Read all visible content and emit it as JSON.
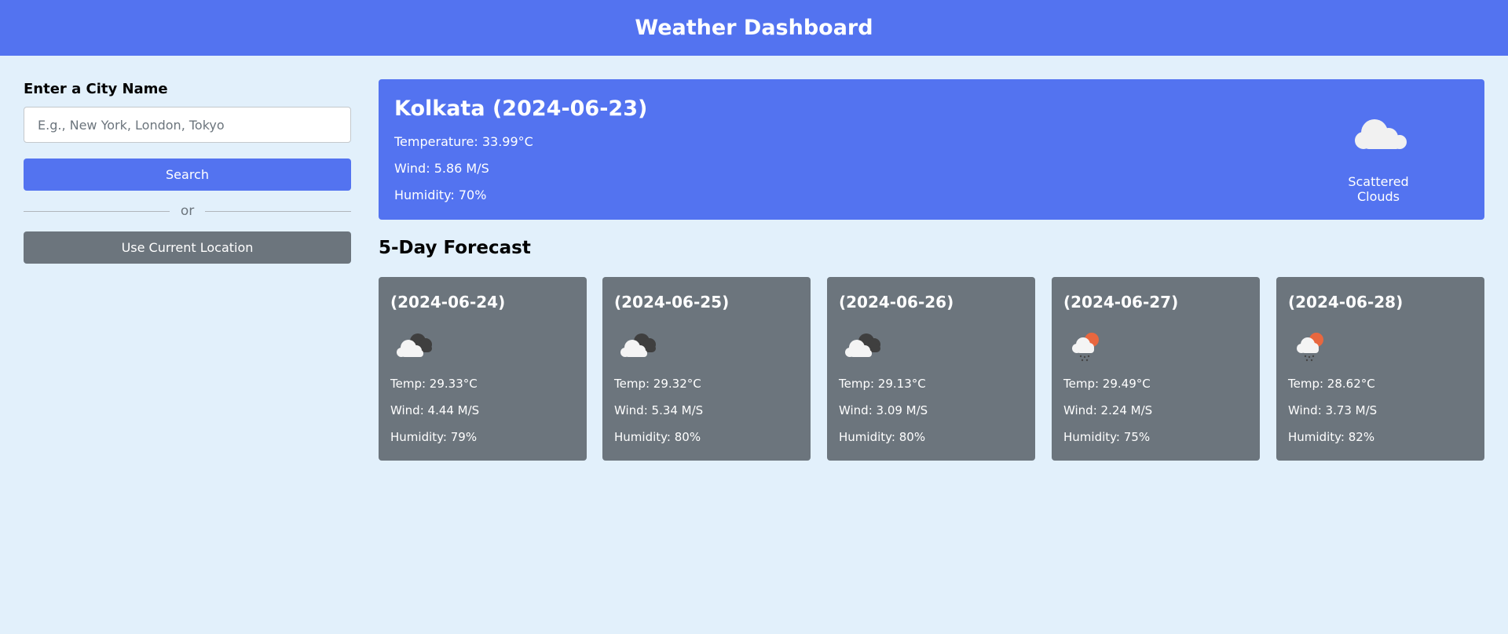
{
  "header": {
    "title": "Weather Dashboard"
  },
  "search": {
    "label": "Enter a City Name",
    "placeholder": "E.g., New York, London, Tokyo",
    "value": "",
    "search_button": "Search",
    "divider_text": "or",
    "location_button": "Use Current Location"
  },
  "current": {
    "title": "Kolkata (2024-06-23)",
    "temperature": "Temperature: 33.99°C",
    "wind": "Wind: 5.86 M/S",
    "humidity": "Humidity: 70%",
    "icon": "cloud-icon",
    "description": "Scattered Clouds"
  },
  "forecast": {
    "title": "5-Day Forecast",
    "days": [
      {
        "date": "(2024-06-24)",
        "icon": "broken-clouds-icon",
        "temp": "Temp: 29.33°C",
        "wind": "Wind: 4.44 M/S",
        "humidity": "Humidity: 79%"
      },
      {
        "date": "(2024-06-25)",
        "icon": "broken-clouds-icon",
        "temp": "Temp: 29.32°C",
        "wind": "Wind: 5.34 M/S",
        "humidity": "Humidity: 80%"
      },
      {
        "date": "(2024-06-26)",
        "icon": "broken-clouds-icon",
        "temp": "Temp: 29.13°C",
        "wind": "Wind: 3.09 M/S",
        "humidity": "Humidity: 80%"
      },
      {
        "date": "(2024-06-27)",
        "icon": "sun-rain-icon",
        "temp": "Temp: 29.49°C",
        "wind": "Wind: 2.24 M/S",
        "humidity": "Humidity: 75%"
      },
      {
        "date": "(2024-06-28)",
        "icon": "sun-rain-icon",
        "temp": "Temp: 28.62°C",
        "wind": "Wind: 3.73 M/S",
        "humidity": "Humidity: 82%"
      }
    ]
  },
  "colors": {
    "primary": "#5373f0",
    "secondary": "#6c757d",
    "background": "#e2f0fb",
    "sun": "#e8673f"
  }
}
